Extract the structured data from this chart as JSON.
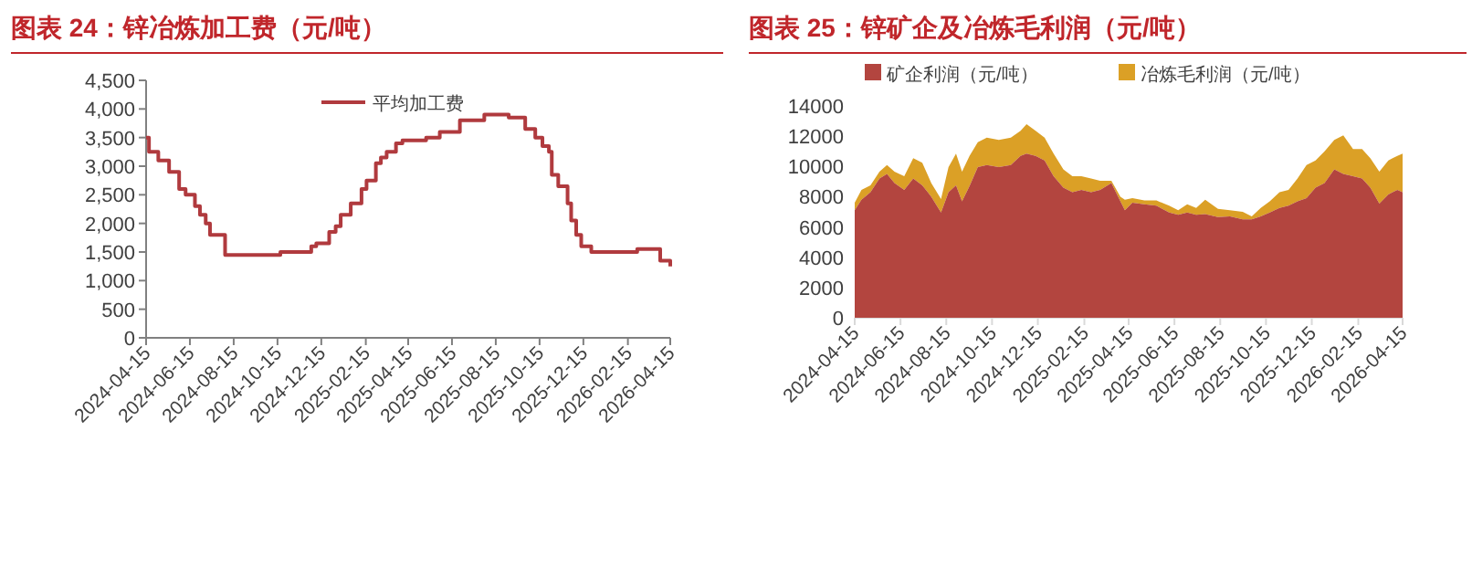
{
  "chart_data": [
    {
      "type": "step",
      "title": "图表 24：锌冶炼加工费（元/吨）",
      "legend": "top",
      "x": [
        "2024-04-15",
        "2024-04-19",
        "2024-05-02",
        "2024-05-17",
        "2024-05-31",
        "2024-06-09",
        "2024-06-22",
        "2024-06-29",
        "2024-07-07",
        "2024-07-13",
        "2024-08-03",
        "2024-10-19",
        "2024-12-01",
        "2024-12-08",
        "2024-12-26",
        "2025-01-04",
        "2025-01-11",
        "2025-01-25",
        "2025-02-09",
        "2025-02-16",
        "2025-03-01",
        "2025-03-08",
        "2025-03-16",
        "2025-03-29",
        "2025-04-07",
        "2025-05-10",
        "2025-05-29",
        "2025-06-26",
        "2025-07-30",
        "2025-09-02",
        "2025-09-25",
        "2025-10-09",
        "2025-10-19",
        "2025-10-28",
        "2025-11-01",
        "2025-11-10",
        "2025-11-23",
        "2025-11-28",
        "2025-12-05",
        "2025-12-12",
        "2025-12-26",
        "2026-02-28",
        "2026-04-01",
        "2026-04-15"
      ],
      "series": [
        {
          "name": "平均加工费",
          "color": "#b03a3e",
          "values": [
            3500,
            3250,
            3100,
            2900,
            2600,
            2500,
            2300,
            2150,
            2000,
            1800,
            1450,
            1500,
            1600,
            1650,
            1850,
            1950,
            2150,
            2350,
            2600,
            2750,
            3050,
            3150,
            3250,
            3400,
            3450,
            3500,
            3600,
            3800,
            3900,
            3850,
            3650,
            3500,
            3350,
            3250,
            2850,
            2650,
            2350,
            2050,
            1800,
            1600,
            1500,
            1550,
            1350,
            1250
          ]
        }
      ],
      "xlim": [
        "2024-04-15",
        "2026-04-15"
      ],
      "xticks": [
        "2024-04-15",
        "2024-06-15",
        "2024-08-15",
        "2024-10-15",
        "2024-12-15",
        "2025-02-15",
        "2025-04-15",
        "2025-06-15",
        "2025-08-15",
        "2025-10-15",
        "2025-12-15",
        "2026-02-15",
        "2026-04-15"
      ],
      "ylim": [
        0,
        4500
      ],
      "yticks": [
        0,
        {
          "value": 500,
          "label": "500"
        },
        {
          "value": 1000,
          "label": "1,000"
        },
        {
          "value": 1500,
          "label": "1,500"
        },
        {
          "value": 2000,
          "label": "2,000"
        },
        {
          "value": 2500,
          "label": "2,500"
        },
        {
          "value": 3000,
          "label": "3,000"
        },
        {
          "value": 3500,
          "label": "3,500"
        },
        {
          "value": 4000,
          "label": "4,000"
        },
        {
          "value": 4500,
          "label": "4,500"
        }
      ]
    },
    {
      "type": "area",
      "title": "图表 25：锌矿企及冶炼毛利润（元/吨）",
      "legend": "top",
      "stacked": true,
      "x": [
        "2024-04-15",
        "2024-04-24",
        "2024-05-06",
        "2024-05-18",
        "2024-05-28",
        "2024-06-07",
        "2024-06-20",
        "2024-07-02",
        "2024-07-14",
        "2024-07-26",
        "2024-08-08",
        "2024-08-18",
        "2024-08-28",
        "2024-09-05",
        "2024-09-15",
        "2024-09-26",
        "2024-10-08",
        "2024-10-24",
        "2024-11-09",
        "2024-11-22",
        "2024-11-30",
        "2024-12-12",
        "2024-12-24",
        "2025-01-05",
        "2025-01-18",
        "2025-01-30",
        "2025-02-11",
        "2025-02-24",
        "2025-03-08",
        "2025-03-23",
        "2025-04-04",
        "2025-04-10",
        "2025-04-20",
        "2025-05-06",
        "2025-05-22",
        "2025-06-08",
        "2025-06-20",
        "2025-07-02",
        "2025-07-14",
        "2025-07-26",
        "2025-08-12",
        "2025-08-28",
        "2025-09-14",
        "2025-09-26",
        "2025-10-08",
        "2025-10-20",
        "2025-11-02",
        "2025-11-14",
        "2025-11-26",
        "2025-12-08",
        "2025-12-20",
        "2026-01-01",
        "2026-01-14",
        "2026-01-26",
        "2026-02-08",
        "2026-02-20",
        "2026-03-03",
        "2026-03-15",
        "2026-03-27",
        "2026-04-08",
        "2026-04-15"
      ],
      "series": [
        {
          "name": "矿企利润（元/吨）",
          "color": "#b3453f",
          "values": [
            7100,
            7800,
            8300,
            9200,
            9500,
            8900,
            8450,
            9200,
            8750,
            8000,
            6950,
            8300,
            8750,
            7700,
            8700,
            9950,
            10100,
            9950,
            10100,
            10700,
            10850,
            10700,
            10400,
            9350,
            8600,
            8300,
            8450,
            8300,
            8450,
            8900,
            7700,
            7100,
            7600,
            7500,
            7400,
            6950,
            6800,
            6950,
            6800,
            6850,
            6650,
            6700,
            6500,
            6500,
            6700,
            6950,
            7250,
            7400,
            7700,
            7900,
            8600,
            8900,
            9800,
            9500,
            9350,
            9200,
            8600,
            7550,
            8150,
            8450,
            8300
          ]
        },
        {
          "name": "冶炼毛利润（元/吨）",
          "color": "#dba026",
          "values": [
            500,
            650,
            450,
            450,
            600,
            750,
            900,
            1350,
            1500,
            900,
            900,
            1650,
            2100,
            1950,
            2000,
            1650,
            1800,
            1800,
            1800,
            1650,
            1950,
            1650,
            1500,
            1500,
            1200,
            1050,
            900,
            900,
            600,
            150,
            300,
            700,
            300,
            250,
            350,
            450,
            300,
            550,
            450,
            950,
            550,
            400,
            500,
            200,
            550,
            750,
            1050,
            1050,
            1500,
            2200,
            1800,
            2100,
            1950,
            2550,
            1800,
            1950,
            1950,
            2100,
            2250,
            2250,
            2550
          ]
        }
      ],
      "xlim": [
        "2024-04-15",
        "2026-04-15"
      ],
      "xticks": [
        "2024-04-15",
        "2024-06-15",
        "2024-08-15",
        "2024-10-15",
        "2024-12-15",
        "2025-02-15",
        "2025-04-15",
        "2025-06-15",
        "2025-08-15",
        "2025-10-15",
        "2025-12-15",
        "2026-02-15",
        "2026-04-15"
      ],
      "ylim": [
        0,
        14000
      ],
      "yticks": [
        0,
        2000,
        4000,
        6000,
        8000,
        10000,
        12000,
        14000
      ]
    }
  ]
}
